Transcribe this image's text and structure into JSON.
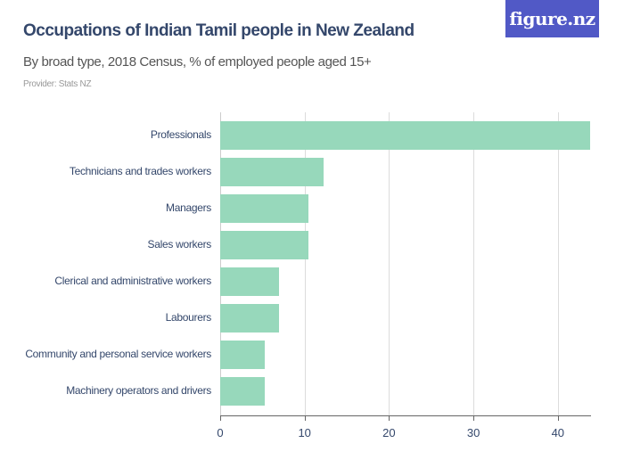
{
  "header": {
    "title": "Occupations of Indian Tamil people in New Zealand",
    "subtitle": "By broad type, 2018 Census, % of employed people aged 15+",
    "provider": "Provider: Stats NZ",
    "logo": "figure.nz"
  },
  "colors": {
    "bar": "#97d8bb",
    "title": "#34476b",
    "logo_bg": "#5159c6"
  },
  "chart_data": {
    "type": "bar",
    "orientation": "horizontal",
    "title": "Occupations of Indian Tamil people in New Zealand",
    "subtitle": "By broad type, 2018 Census, % of employed people aged 15+",
    "xlabel": "",
    "ylabel": "",
    "categories": [
      "Professionals",
      "Technicians and trades workers",
      "Managers",
      "Sales workers",
      "Clerical and administrative workers",
      "Labourers",
      "Community and personal service workers",
      "Machinery operators and drivers"
    ],
    "values": [
      43.8,
      12.3,
      10.5,
      10.5,
      7.0,
      7.0,
      5.3,
      5.3
    ],
    "xlim": [
      0,
      45
    ],
    "xticks": [
      "0",
      "10",
      "20",
      "30",
      "40"
    ],
    "grid": true,
    "legend": "none"
  }
}
